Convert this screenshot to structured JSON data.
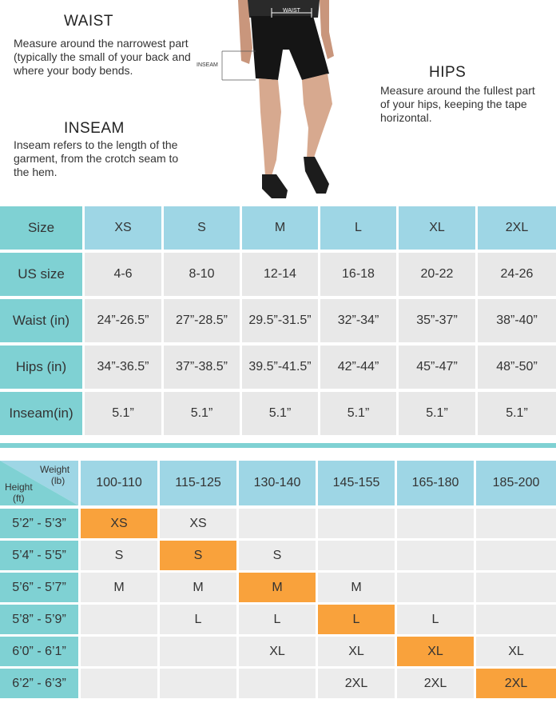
{
  "waist": {
    "title": "WAIST",
    "desc": "Measure around the narrowest part (typically the small of your back and where your body bends."
  },
  "hips": {
    "title": "HIPS",
    "desc": "Measure around the fullest part of your hips, keeping the tape horizontal."
  },
  "inseam": {
    "title": "INSEAM",
    "desc": "Inseam refers to the length of the garment, from the crotch seam to the hem."
  },
  "figure_labels": {
    "waist": "WAIST",
    "inseam": "INSEAM"
  },
  "size_table": {
    "header": {
      "label": "Size",
      "cols": [
        "XS",
        "S",
        "M",
        "L",
        "XL",
        "2XL"
      ]
    },
    "rows": [
      {
        "label": "US size",
        "values": [
          "4-6",
          "8-10",
          "12-14",
          "16-18",
          "20-22",
          "24-26"
        ]
      },
      {
        "label": "Waist (in)",
        "values": [
          "24”-26.5”",
          "27”-28.5”",
          "29.5”-31.5”",
          "32”-34”",
          "35”-37”",
          "38”-40”"
        ]
      },
      {
        "label": "Hips (in)",
        "values": [
          "34”-36.5”",
          "37”-38.5”",
          "39.5”-41.5”",
          "42”-44”",
          "45”-47”",
          "48”-50”"
        ]
      },
      {
        "label": "Inseam(in)",
        "values": [
          "5.1”",
          "5.1”",
          "5.1”",
          "5.1”",
          "5.1”",
          "5.1”"
        ]
      }
    ]
  },
  "hw_table": {
    "corner": {
      "weight": "Weight",
      "weight_unit": "(lb)",
      "height": "Height",
      "height_unit": "(ft)"
    },
    "cols": [
      "100-110",
      "115-125",
      "130-140",
      "145-155",
      "165-180",
      "185-200"
    ],
    "rows": [
      {
        "label": "5’2” - 5’3”",
        "values": [
          "XS",
          "XS",
          "",
          "",
          "",
          ""
        ],
        "highlight": 0
      },
      {
        "label": "5’4” - 5’5”",
        "values": [
          "S",
          "S",
          "S",
          "",
          "",
          ""
        ],
        "highlight": 1
      },
      {
        "label": "5’6” - 5’7”",
        "values": [
          "M",
          "M",
          "M",
          "M",
          "",
          ""
        ],
        "highlight": 2
      },
      {
        "label": "5’8” - 5’9”",
        "values": [
          "",
          "L",
          "L",
          "L",
          "L",
          ""
        ],
        "highlight": 3
      },
      {
        "label": "6’0” - 6’1”",
        "values": [
          "",
          "",
          "XL",
          "XL",
          "XL",
          "XL"
        ],
        "highlight": 4
      },
      {
        "label": "6’2” - 6’3”",
        "values": [
          "",
          "",
          "",
          "2XL",
          "2XL",
          "2XL"
        ],
        "highlight": 5
      }
    ],
    "colors": {
      "highlight": "#f9a23c",
      "label_bg": "#7fd1d3",
      "header_bg": "#9ed6e5",
      "cell_bg": "#ececec"
    }
  }
}
